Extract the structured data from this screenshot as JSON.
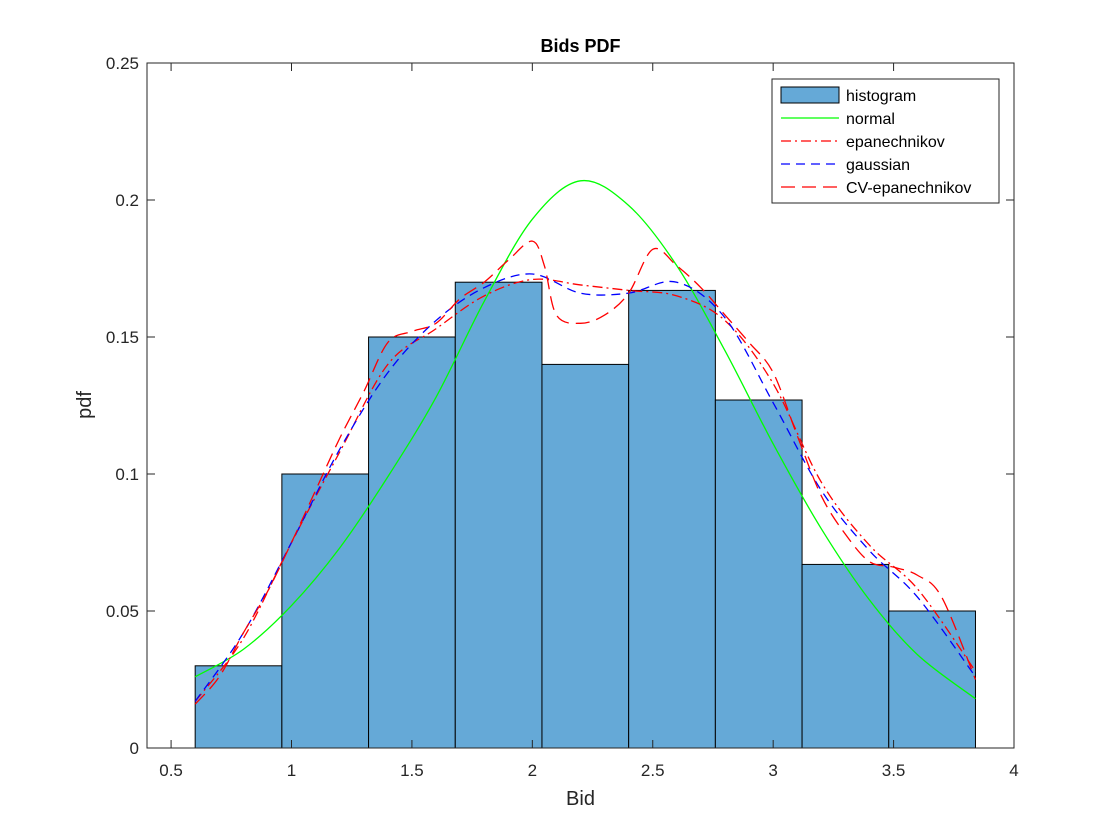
{
  "chart_data": {
    "type": "bar",
    "title": "Bids PDF",
    "xlabel": "Bid",
    "ylabel": "pdf",
    "xlim": [
      0.4,
      4.0
    ],
    "ylim": [
      0,
      0.25
    ],
    "xticks": [
      "0.5",
      "1",
      "1.5",
      "2",
      "2.5",
      "3",
      "3.5",
      "4"
    ],
    "xtick_values": [
      0.5,
      1,
      1.5,
      2,
      2.5,
      3,
      3.5,
      4
    ],
    "yticks": [
      "0",
      "0.05",
      "0.1",
      "0.15",
      "0.2",
      "0.25"
    ],
    "ytick_values": [
      0,
      0.05,
      0.1,
      0.15,
      0.2,
      0.25
    ],
    "grid": false,
    "legend_position": "top-right",
    "histogram": {
      "name": "histogram",
      "color": "#65a9d7",
      "edge_color": "#000000",
      "bin_edges": [
        0.6,
        0.96,
        1.32,
        1.68,
        2.04,
        2.4,
        2.76,
        3.12,
        3.48,
        3.84
      ],
      "values": [
        0.03,
        0.1,
        0.15,
        0.17,
        0.14,
        0.167,
        0.127,
        0.067,
        0.05
      ]
    },
    "series": [
      {
        "name": "normal",
        "color": "#00ff00",
        "dash": "solid",
        "x": [
          0.6,
          0.8,
          1.0,
          1.2,
          1.4,
          1.6,
          1.8,
          2.0,
          2.2,
          2.4,
          2.6,
          2.8,
          3.0,
          3.2,
          3.4,
          3.6,
          3.84
        ],
        "y": [
          0.026,
          0.036,
          0.052,
          0.073,
          0.099,
          0.128,
          0.163,
          0.193,
          0.207,
          0.198,
          0.176,
          0.145,
          0.111,
          0.08,
          0.054,
          0.034,
          0.018
        ]
      },
      {
        "name": "epanechnikov",
        "color": "#ff0000",
        "dash": "dashdot",
        "x": [
          0.6,
          0.8,
          1.0,
          1.2,
          1.4,
          1.6,
          1.8,
          2.0,
          2.2,
          2.4,
          2.6,
          2.8,
          3.0,
          3.2,
          3.4,
          3.6,
          3.84
        ],
        "y": [
          0.017,
          0.04,
          0.075,
          0.108,
          0.14,
          0.153,
          0.165,
          0.171,
          0.169,
          0.167,
          0.165,
          0.156,
          0.133,
          0.097,
          0.074,
          0.058,
          0.028
        ]
      },
      {
        "name": "gaussian",
        "color": "#0000ff",
        "dash": "dashed",
        "x": [
          0.6,
          0.8,
          1.0,
          1.2,
          1.4,
          1.6,
          1.8,
          2.0,
          2.2,
          2.4,
          2.6,
          2.8,
          3.0,
          3.2,
          3.4,
          3.6,
          3.84
        ],
        "y": [
          0.017,
          0.042,
          0.075,
          0.109,
          0.137,
          0.156,
          0.168,
          0.173,
          0.166,
          0.166,
          0.17,
          0.157,
          0.126,
          0.094,
          0.072,
          0.055,
          0.026
        ]
      },
      {
        "name": "CV-epanechnikov",
        "color": "#ff0000",
        "dash": "longdash",
        "x": [
          0.6,
          0.7,
          0.8,
          0.9,
          1.0,
          1.1,
          1.2,
          1.3,
          1.4,
          1.5,
          1.6,
          1.7,
          1.8,
          1.9,
          2.0,
          2.05,
          2.1,
          2.2,
          2.3,
          2.4,
          2.5,
          2.6,
          2.7,
          2.8,
          2.9,
          3.0,
          3.1,
          3.2,
          3.3,
          3.4,
          3.5,
          3.6,
          3.7,
          3.84
        ],
        "y": [
          0.016,
          0.026,
          0.042,
          0.057,
          0.075,
          0.094,
          0.113,
          0.13,
          0.148,
          0.152,
          0.155,
          0.164,
          0.17,
          0.178,
          0.185,
          0.176,
          0.158,
          0.155,
          0.158,
          0.166,
          0.182,
          0.176,
          0.168,
          0.158,
          0.148,
          0.137,
          0.114,
          0.092,
          0.078,
          0.068,
          0.066,
          0.063,
          0.055,
          0.025
        ]
      }
    ]
  }
}
